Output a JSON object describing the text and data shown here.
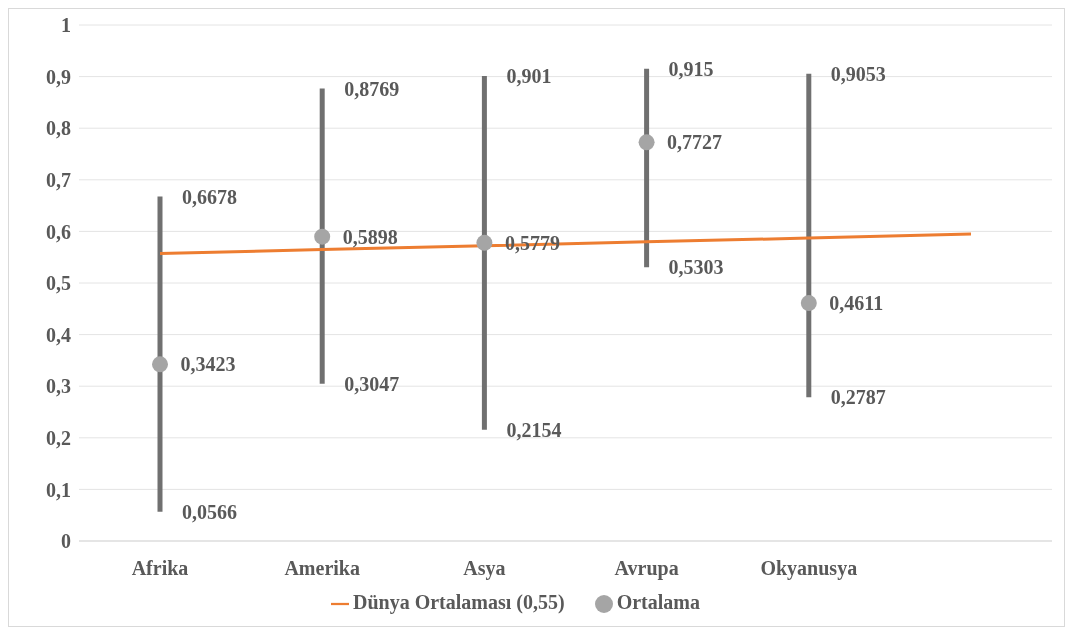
{
  "chart_data": {
    "type": "scatter",
    "categories": [
      "Afrika",
      "Amerika",
      "Asya",
      "Avrupa",
      "Okyanusya",
      null
    ],
    "series": [
      {
        "name": "Ortalama",
        "marker": "circle",
        "color": "#a5a5a5",
        "values": [
          0.3423,
          0.5898,
          0.5779,
          0.7727,
          0.4611,
          null
        ],
        "value_labels": [
          "0,3423",
          "0,5898",
          "0,5779",
          "0,7727",
          "0,4611",
          null
        ],
        "errors": [
          [
            0.0566,
            0.6678
          ],
          [
            0.3047,
            0.8769
          ],
          [
            0.2154,
            0.901
          ],
          [
            0.5303,
            0.915
          ],
          [
            0.2787,
            0.9053
          ],
          null
        ]
      },
      {
        "name": "Dünya Ortalaması (0,55)",
        "type": "line",
        "marker": "none",
        "color": "#ed7d31",
        "values": [
          0.557,
          0.565,
          0.572,
          0.58,
          0.587,
          0.595
        ]
      }
    ],
    "annotations": [
      {
        "text": "0,6678",
        "x": "Afrika",
        "y": 0.6678
      },
      {
        "text": "0,0566",
        "x": "Afrika",
        "y": 0.0566
      },
      {
        "text": "0,8769",
        "x": "Amerika",
        "y": 0.8769
      },
      {
        "text": "0,3047",
        "x": "Amerika",
        "y": 0.3047
      },
      {
        "text": "0,901",
        "x": "Asya",
        "y": 0.901
      },
      {
        "text": "0,2154",
        "x": "Asya",
        "y": 0.2154
      },
      {
        "text": "0,915",
        "x": "Avrupa",
        "y": 0.915
      },
      {
        "text": "0,5303",
        "x": "Avrupa",
        "y": 0.5303
      },
      {
        "text": "0,9053",
        "x": "Okyanusya",
        "y": 0.9053
      },
      {
        "text": "0,2787",
        "x": "Okyanusya",
        "y": 0.2787
      }
    ],
    "ylim": [
      0,
      1
    ],
    "yticks": [
      {
        "value": 0,
        "label": "0"
      },
      {
        "value": 0.1,
        "label": "0,1"
      },
      {
        "value": 0.2,
        "label": "0,2"
      },
      {
        "value": 0.3,
        "label": "0,3"
      },
      {
        "value": 0.4,
        "label": "0,4"
      },
      {
        "value": 0.5,
        "label": "0,5"
      },
      {
        "value": 0.6,
        "label": "0,6"
      },
      {
        "value": 0.7,
        "label": "0,7"
      },
      {
        "value": 0.8,
        "label": "0,8"
      },
      {
        "value": 0.9,
        "label": "0,9"
      },
      {
        "value": 1,
        "label": "1"
      }
    ],
    "grid": "y",
    "legend": "bottom"
  }
}
